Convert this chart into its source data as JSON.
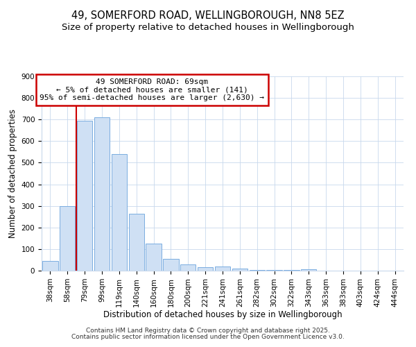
{
  "title": "49, SOMERFORD ROAD, WELLINGBOROUGH, NN8 5EZ",
  "subtitle": "Size of property relative to detached houses in Wellingborough",
  "xlabel": "Distribution of detached houses by size in Wellingborough",
  "ylabel": "Number of detached properties",
  "bar_labels": [
    "38sqm",
    "58sqm",
    "79sqm",
    "99sqm",
    "119sqm",
    "140sqm",
    "160sqm",
    "180sqm",
    "200sqm",
    "221sqm",
    "241sqm",
    "261sqm",
    "282sqm",
    "302sqm",
    "322sqm",
    "343sqm",
    "363sqm",
    "383sqm",
    "403sqm",
    "424sqm",
    "444sqm"
  ],
  "bar_values": [
    45,
    300,
    695,
    710,
    540,
    265,
    125,
    55,
    30,
    15,
    20,
    10,
    4,
    3,
    2,
    8,
    1,
    1,
    1,
    1,
    1
  ],
  "bar_color": "#cfe0f4",
  "bar_edgecolor": "#7aace0",
  "bg_color": "#ffffff",
  "grid_color": "#c8d8ec",
  "ylim": [
    0,
    900
  ],
  "yticks": [
    0,
    100,
    200,
    300,
    400,
    500,
    600,
    700,
    800,
    900
  ],
  "red_line_x": 1.52,
  "annotation_title": "49 SOMERFORD ROAD: 69sqm",
  "annotation_line1": "← 5% of detached houses are smaller (141)",
  "annotation_line2": "95% of semi-detached houses are larger (2,630) →",
  "annotation_box_color": "#ffffff",
  "annotation_box_edge": "#cc0000",
  "red_line_color": "#cc0000",
  "footer1": "Contains HM Land Registry data © Crown copyright and database right 2025.",
  "footer2": "Contains public sector information licensed under the Open Government Licence v3.0.",
  "title_fontsize": 10.5,
  "subtitle_fontsize": 9.5,
  "axis_label_fontsize": 8.5,
  "tick_fontsize": 7.5,
  "annotation_fontsize": 8,
  "footer_fontsize": 6.5
}
